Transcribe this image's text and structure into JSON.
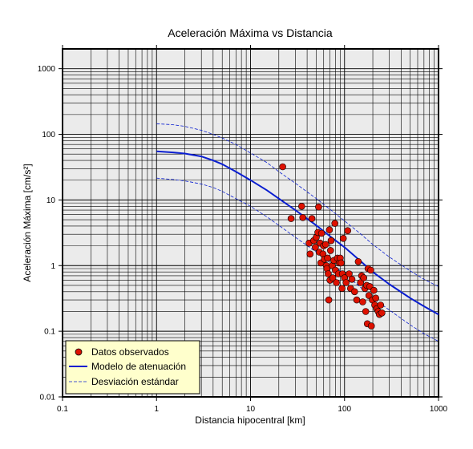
{
  "chart_data": {
    "type": "scatter",
    "title": "Aceleración Máxima vs Distancia",
    "xlabel": "Distancia hipocentral [km]",
    "ylabel": "Aceleración Máxima [cm/s²]",
    "x_scale": "log",
    "y_scale": "log",
    "xlim": [
      0.1,
      1000
    ],
    "ylim": [
      0.01,
      2000
    ],
    "grid": true,
    "legend_position": "bottom-left",
    "background_color": "#ebebeb",
    "x_ticks": [
      "0.1",
      "1",
      "10",
      "100",
      "1000"
    ],
    "y_ticks": [
      "0.01",
      "0.1",
      "1",
      "10",
      "100",
      "1000"
    ],
    "legend": [
      {
        "label": "Datos observados",
        "style": "marker",
        "color": "#dd1100"
      },
      {
        "label": "Modelo de atenuación",
        "style": "solid",
        "color": "#0a1ed0"
      },
      {
        "label": "Desviación estándar",
        "style": "dashed",
        "color": "#0a1ed0"
      }
    ],
    "series": [
      {
        "name": "Datos observados",
        "type": "scatter",
        "color": "#dd1100",
        "points": [
          [
            22,
            32
          ],
          [
            27,
            5.2
          ],
          [
            35,
            8
          ],
          [
            36,
            5.4
          ],
          [
            42,
            2.2
          ],
          [
            43,
            1.5
          ],
          [
            45,
            5.2
          ],
          [
            47,
            2.4
          ],
          [
            49,
            1.9
          ],
          [
            50,
            2.7
          ],
          [
            52,
            3.2
          ],
          [
            53,
            7.8
          ],
          [
            54,
            1.6
          ],
          [
            55,
            2.2
          ],
          [
            56,
            1.1
          ],
          [
            57,
            3.1
          ],
          [
            59,
            1.5
          ],
          [
            60,
            2.0
          ],
          [
            61,
            1.25
          ],
          [
            63,
            2.1
          ],
          [
            64,
            1.0
          ],
          [
            65,
            0.9
          ],
          [
            66,
            1.3
          ],
          [
            67,
            0.75
          ],
          [
            68,
            0.3
          ],
          [
            69,
            3.5
          ],
          [
            70,
            0.6
          ],
          [
            71,
            1.7
          ],
          [
            72,
            2.4
          ],
          [
            74,
            1.0
          ],
          [
            75,
            0.65
          ],
          [
            77,
            1.2
          ],
          [
            79,
            4.4
          ],
          [
            80,
            0.85
          ],
          [
            82,
            0.55
          ],
          [
            84,
            1.3
          ],
          [
            86,
            0.75
          ],
          [
            88,
            1.1
          ],
          [
            90,
            1.3
          ],
          [
            92,
            1.1
          ],
          [
            94,
            0.45
          ],
          [
            95,
            0.75
          ],
          [
            97,
            2.6
          ],
          [
            100,
            0.65
          ],
          [
            104,
            0.55
          ],
          [
            108,
            3.4
          ],
          [
            112,
            0.75
          ],
          [
            116,
            0.45
          ],
          [
            120,
            0.62
          ],
          [
            128,
            0.4
          ],
          [
            135,
            0.3
          ],
          [
            140,
            1.15
          ],
          [
            148,
            0.55
          ],
          [
            152,
            0.7
          ],
          [
            156,
            0.28
          ],
          [
            160,
            0.65
          ],
          [
            165,
            0.45
          ],
          [
            168,
            0.2
          ],
          [
            172,
            0.5
          ],
          [
            175,
            0.13
          ],
          [
            178,
            0.9
          ],
          [
            182,
            0.35
          ],
          [
            186,
            0.48
          ],
          [
            190,
            0.85
          ],
          [
            193,
            0.12
          ],
          [
            198,
            0.3
          ],
          [
            205,
            0.42
          ],
          [
            210,
            0.25
          ],
          [
            215,
            0.32
          ],
          [
            220,
            0.22
          ],
          [
            228,
            0.2
          ],
          [
            235,
            0.18
          ],
          [
            242,
            0.25
          ],
          [
            250,
            0.19
          ]
        ]
      },
      {
        "name": "Modelo de atenuación",
        "type": "line",
        "style": "solid",
        "color": "#0a1ed0",
        "points": [
          [
            1,
            55
          ],
          [
            1.5,
            53
          ],
          [
            2,
            51
          ],
          [
            3,
            46
          ],
          [
            4,
            40
          ],
          [
            5,
            35
          ],
          [
            7,
            27
          ],
          [
            10,
            20
          ],
          [
            15,
            14
          ],
          [
            20,
            10.5
          ],
          [
            30,
            7
          ],
          [
            50,
            4.1
          ],
          [
            70,
            2.8
          ],
          [
            100,
            1.9
          ],
          [
            150,
            1.15
          ],
          [
            200,
            0.8
          ],
          [
            300,
            0.52
          ],
          [
            500,
            0.32
          ],
          [
            700,
            0.24
          ],
          [
            1000,
            0.18
          ]
        ]
      },
      {
        "name": "Desviación estándar",
        "type": "line",
        "style": "dashed",
        "color": "#0a1ed0",
        "points": [
          [
            1,
            145
          ],
          [
            1.5,
            140
          ],
          [
            2,
            132
          ],
          [
            3,
            115
          ],
          [
            4,
            100
          ],
          [
            5,
            88
          ],
          [
            7,
            70
          ],
          [
            10,
            52
          ],
          [
            15,
            37
          ],
          [
            20,
            27
          ],
          [
            30,
            18
          ],
          [
            50,
            10.5
          ],
          [
            70,
            7.2
          ],
          [
            100,
            4.8
          ],
          [
            150,
            3.0
          ],
          [
            200,
            2.1
          ],
          [
            300,
            1.35
          ],
          [
            500,
            0.83
          ],
          [
            700,
            0.62
          ],
          [
            1000,
            0.48
          ]
        ]
      },
      {
        "name": "Desviación estándar (inferior)",
        "type": "line",
        "style": "dashed",
        "color": "#0a1ed0",
        "points": [
          [
            1,
            21.5
          ],
          [
            1.5,
            20.5
          ],
          [
            2,
            19.5
          ],
          [
            3,
            17.5
          ],
          [
            4,
            15.5
          ],
          [
            5,
            13.5
          ],
          [
            7,
            10.5
          ],
          [
            10,
            8
          ],
          [
            15,
            5.5
          ],
          [
            20,
            4.1
          ],
          [
            30,
            2.7
          ],
          [
            50,
            1.6
          ],
          [
            70,
            1.1
          ],
          [
            100,
            0.75
          ],
          [
            150,
            0.46
          ],
          [
            200,
            0.32
          ],
          [
            300,
            0.21
          ],
          [
            500,
            0.125
          ],
          [
            700,
            0.092
          ],
          [
            1000,
            0.07
          ]
        ]
      }
    ]
  }
}
